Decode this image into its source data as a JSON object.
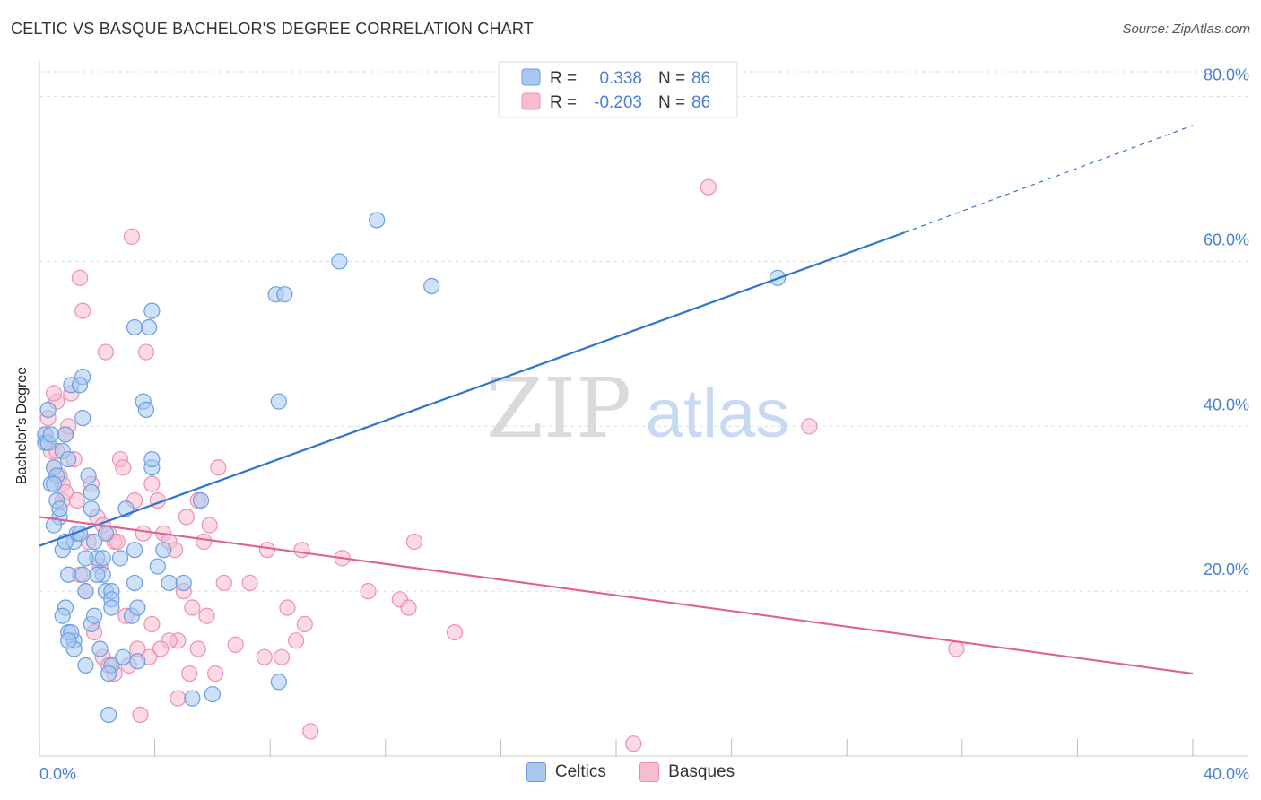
{
  "header": {
    "title": "CELTIC VS BASQUE BACHELOR'S DEGREE CORRELATION CHART",
    "source": "Source: ZipAtlas.com"
  },
  "watermark": {
    "zip": "ZIP",
    "atlas": "atlas"
  },
  "legend_top": {
    "rows": [
      {
        "r_label": "R =",
        "r_value": "0.338",
        "n_label": "N =",
        "n_value": "86"
      },
      {
        "r_label": "R =",
        "r_value": "-0.203",
        "n_label": "N =",
        "n_value": "86"
      }
    ]
  },
  "legend_bottom": {
    "items": [
      "Celtics",
      "Basques"
    ]
  },
  "colors": {
    "celtics_fill": "#a8c8f0",
    "celtics_stroke": "#6a9ee0",
    "celtics_line": "#2f74d0",
    "basques_fill": "#f8bcd0",
    "basques_stroke": "#ec90b0",
    "basques_line": "#e06090",
    "tick_text": "#4a7fd4",
    "grid": "#dddddd"
  },
  "chart_data": {
    "type": "scatter",
    "title": "CELTIC VS BASQUE BACHELOR'S DEGREE CORRELATION CHART",
    "xlabel": "",
    "ylabel": "Bachelor's Degree",
    "xlim": [
      0,
      40
    ],
    "ylim": [
      0,
      83
    ],
    "x_tick_labels": [
      "0.0%",
      "40.0%"
    ],
    "y_ticks": [
      20,
      40,
      60,
      80
    ],
    "y_tick_labels": [
      "20.0%",
      "40.0%",
      "60.0%",
      "80.0%"
    ],
    "grid": true,
    "legend_position": "top-center",
    "series": [
      {
        "name": "Celtics",
        "r": 0.338,
        "n": 86,
        "trend": {
          "x0": 0,
          "y0": 25.5,
          "x1": 30,
          "y1": 63.5,
          "dashed_to_x": 40,
          "dashed_to_y": 76.5
        },
        "points": [
          [
            0.2,
            39
          ],
          [
            0.3,
            42
          ],
          [
            0.2,
            38
          ],
          [
            0.5,
            35
          ],
          [
            0.4,
            33
          ],
          [
            0.6,
            31
          ],
          [
            0.7,
            29
          ],
          [
            0.8,
            37
          ],
          [
            0.9,
            39
          ],
          [
            0.6,
            34
          ],
          [
            1.0,
            36
          ],
          [
            1.1,
            45
          ],
          [
            1.2,
            26
          ],
          [
            1.3,
            27
          ],
          [
            0.8,
            25
          ],
          [
            1.0,
            22
          ],
          [
            1.5,
            46
          ],
          [
            1.4,
            45
          ],
          [
            1.5,
            41
          ],
          [
            1.8,
            32
          ],
          [
            1.7,
            34
          ],
          [
            2.0,
            24
          ],
          [
            2.2,
            22
          ],
          [
            2.3,
            20
          ],
          [
            2.5,
            20
          ],
          [
            2.5,
            19
          ],
          [
            2.8,
            24
          ],
          [
            3.0,
            30
          ],
          [
            1.5,
            22
          ],
          [
            1.6,
            20
          ],
          [
            1.8,
            16
          ],
          [
            1.9,
            17
          ],
          [
            1.2,
            14
          ],
          [
            1.6,
            11
          ],
          [
            2.1,
            13
          ],
          [
            2.5,
            11
          ],
          [
            2.4,
            10
          ],
          [
            0.9,
            18
          ],
          [
            1.0,
            15
          ],
          [
            1.2,
            13
          ],
          [
            3.2,
            17
          ],
          [
            3.4,
            18
          ],
          [
            3.3,
            21
          ],
          [
            3.3,
            25
          ],
          [
            3.6,
            43
          ],
          [
            3.7,
            42
          ],
          [
            3.9,
            35
          ],
          [
            3.9,
            36
          ],
          [
            4.1,
            23
          ],
          [
            4.3,
            25
          ],
          [
            3.9,
            54
          ],
          [
            3.3,
            52
          ],
          [
            2.5,
            18
          ],
          [
            1.9,
            26
          ],
          [
            2.3,
            27
          ],
          [
            2.2,
            24
          ],
          [
            0.7,
            30
          ],
          [
            0.5,
            33
          ],
          [
            0.3,
            38
          ],
          [
            0.4,
            39
          ],
          [
            4.5,
            21
          ],
          [
            5.0,
            21
          ],
          [
            5.6,
            31
          ],
          [
            8.2,
            56
          ],
          [
            8.5,
            56
          ],
          [
            10.4,
            60
          ],
          [
            11.7,
            65
          ],
          [
            13.6,
            57
          ],
          [
            25.6,
            58
          ],
          [
            8.3,
            43
          ],
          [
            3.8,
            52
          ],
          [
            5.3,
            7
          ],
          [
            6.0,
            7.5
          ],
          [
            8.3,
            9
          ],
          [
            2.4,
            5
          ],
          [
            0.8,
            17
          ],
          [
            1.1,
            15
          ],
          [
            1.0,
            14
          ],
          [
            2.9,
            12
          ],
          [
            3.4,
            11.5
          ],
          [
            1.4,
            27
          ],
          [
            1.8,
            30
          ],
          [
            2.0,
            22
          ],
          [
            0.5,
            28
          ],
          [
            0.9,
            26
          ],
          [
            1.6,
            24
          ]
        ]
      },
      {
        "name": "Basques",
        "r": -0.203,
        "n": 86,
        "trend": {
          "x0": 0,
          "y0": 29,
          "x1": 40,
          "y1": 10
        },
        "points": [
          [
            0.2,
            39
          ],
          [
            0.3,
            41
          ],
          [
            0.4,
            37
          ],
          [
            0.5,
            35
          ],
          [
            0.6,
            43
          ],
          [
            0.7,
            34
          ],
          [
            0.8,
            33
          ],
          [
            0.9,
            39
          ],
          [
            1.0,
            40
          ],
          [
            1.1,
            44
          ],
          [
            1.4,
            58
          ],
          [
            1.5,
            54
          ],
          [
            2.3,
            49
          ],
          [
            3.2,
            63
          ],
          [
            3.7,
            49
          ],
          [
            0.5,
            44
          ],
          [
            0.8,
            31
          ],
          [
            1.3,
            31
          ],
          [
            1.8,
            33
          ],
          [
            2.0,
            29
          ],
          [
            2.2,
            28
          ],
          [
            2.4,
            27
          ],
          [
            2.6,
            26
          ],
          [
            2.8,
            36
          ],
          [
            2.9,
            35
          ],
          [
            3.3,
            31
          ],
          [
            3.9,
            33
          ],
          [
            4.1,
            31
          ],
          [
            4.3,
            27
          ],
          [
            4.5,
            26
          ],
          [
            4.7,
            25
          ],
          [
            5.1,
            29
          ],
          [
            5.5,
            31
          ],
          [
            5.9,
            28
          ],
          [
            6.2,
            35
          ],
          [
            7.9,
            25
          ],
          [
            10.5,
            24
          ],
          [
            11.4,
            20
          ],
          [
            12.5,
            19
          ],
          [
            13.0,
            26
          ],
          [
            14.4,
            15
          ],
          [
            12.8,
            18
          ],
          [
            9.2,
            16
          ],
          [
            8.9,
            14
          ],
          [
            8.6,
            18
          ],
          [
            7.8,
            12
          ],
          [
            6.8,
            13.5
          ],
          [
            6.1,
            10
          ],
          [
            5.8,
            17
          ],
          [
            5.5,
            13
          ],
          [
            5.3,
            18
          ],
          [
            5.0,
            20
          ],
          [
            4.8,
            14
          ],
          [
            4.5,
            14
          ],
          [
            4.2,
            13
          ],
          [
            3.8,
            12
          ],
          [
            3.4,
            13
          ],
          [
            3.1,
            11
          ],
          [
            2.6,
            10
          ],
          [
            2.2,
            12
          ],
          [
            1.9,
            15
          ],
          [
            1.6,
            20
          ],
          [
            1.4,
            22
          ],
          [
            3.0,
            17
          ],
          [
            3.5,
            5
          ],
          [
            4.8,
            7
          ],
          [
            9.4,
            3
          ],
          [
            20.6,
            1.5
          ],
          [
            23.2,
            69
          ],
          [
            26.7,
            40
          ],
          [
            31.8,
            13
          ],
          [
            5.2,
            10
          ],
          [
            7.3,
            21
          ],
          [
            8.4,
            12
          ],
          [
            9.1,
            25
          ],
          [
            6.4,
            21
          ],
          [
            5.7,
            26
          ],
          [
            3.6,
            27
          ],
          [
            2.7,
            26
          ],
          [
            2.1,
            23
          ],
          [
            0.6,
            37
          ],
          [
            0.9,
            32
          ],
          [
            1.2,
            36
          ],
          [
            1.7,
            26
          ],
          [
            2.4,
            11
          ],
          [
            3.9,
            16
          ]
        ]
      }
    ]
  }
}
